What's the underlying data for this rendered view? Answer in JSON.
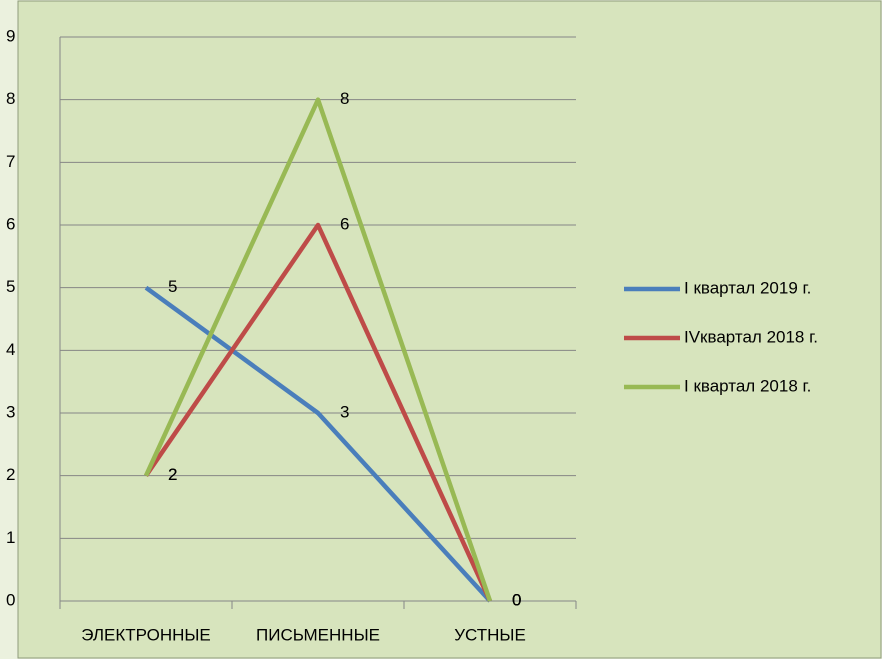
{
  "chart_data": {
    "type": "line",
    "categories": [
      "ЭЛЕКТРОННЫЕ",
      "ПИСЬМЕННЫЕ",
      "УСТНЫЕ"
    ],
    "series": [
      {
        "name": "I квартал 2019 г.",
        "color": "#4a7ebb",
        "values": [
          5,
          3,
          0
        ]
      },
      {
        "name": "IVквартал 2018 г.",
        "color": "#be4b48",
        "values": [
          2,
          6,
          0
        ]
      },
      {
        "name": "I квартал 2018 г.",
        "color": "#98b954",
        "values": [
          2,
          8,
          0
        ]
      }
    ],
    "ylim": [
      0,
      9
    ],
    "yticks": [
      0,
      1,
      2,
      3,
      4,
      5,
      6,
      7,
      8,
      9
    ],
    "grid": true,
    "legend": "right",
    "data_labels": true
  }
}
